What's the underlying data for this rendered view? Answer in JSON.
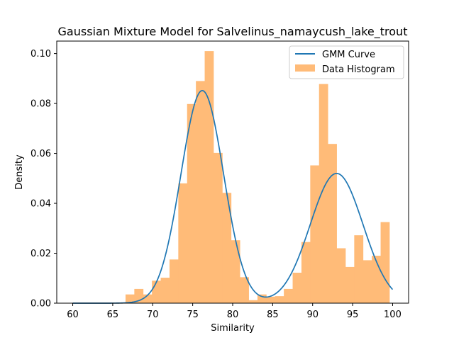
{
  "chart_data": {
    "type": "histogram+line",
    "title": "Gaussian Mixture Model for Salvelinus_namaycush_lake_trout",
    "xlabel": "Similarity",
    "ylabel": "Density",
    "xlim": [
      58,
      102
    ],
    "ylim": [
      0,
      0.105
    ],
    "xticks": [
      60,
      65,
      70,
      75,
      80,
      85,
      90,
      95,
      100
    ],
    "xtick_labels": [
      "60",
      "65",
      "70",
      "75",
      "80",
      "85",
      "90",
      "95",
      "100"
    ],
    "yticks": [
      0.0,
      0.02,
      0.04,
      0.06,
      0.08,
      0.1
    ],
    "ytick_labels": [
      "0.00",
      "0.02",
      "0.04",
      "0.06",
      "0.08",
      "0.10"
    ],
    "legend_position": "top-right",
    "colors": {
      "curve": "#1f77b4",
      "histogram": "#ffbb78"
    },
    "legend": [
      {
        "label": "GMM Curve",
        "kind": "line",
        "color": "#1f77b4"
      },
      {
        "label": "Data Histogram",
        "kind": "patch",
        "color": "#ffbb78"
      }
    ],
    "histogram": {
      "name": "Data Histogram",
      "bin_start": 66.6,
      "bin_width": 1.1,
      "densities": [
        0.0035,
        0.0057,
        0.0035,
        0.009,
        0.0102,
        0.0175,
        0.048,
        0.0798,
        0.089,
        0.101,
        0.0602,
        0.0442,
        0.0252,
        0.0104,
        0.0012,
        0.0035,
        0.0026,
        0.0028,
        0.0057,
        0.0122,
        0.0245,
        0.0552,
        0.0878,
        0.0638,
        0.022,
        0.0145,
        0.0272,
        0.0172,
        0.019,
        0.0325
      ]
    },
    "gmm_curve": {
      "name": "GMM Curve",
      "x_range": [
        60,
        100
      ],
      "components": [
        {
          "weight": 0.57,
          "mean": 76.2,
          "std": 2.67
        },
        {
          "weight": 0.43,
          "mean": 93.0,
          "std": 3.3
        }
      ]
    }
  }
}
